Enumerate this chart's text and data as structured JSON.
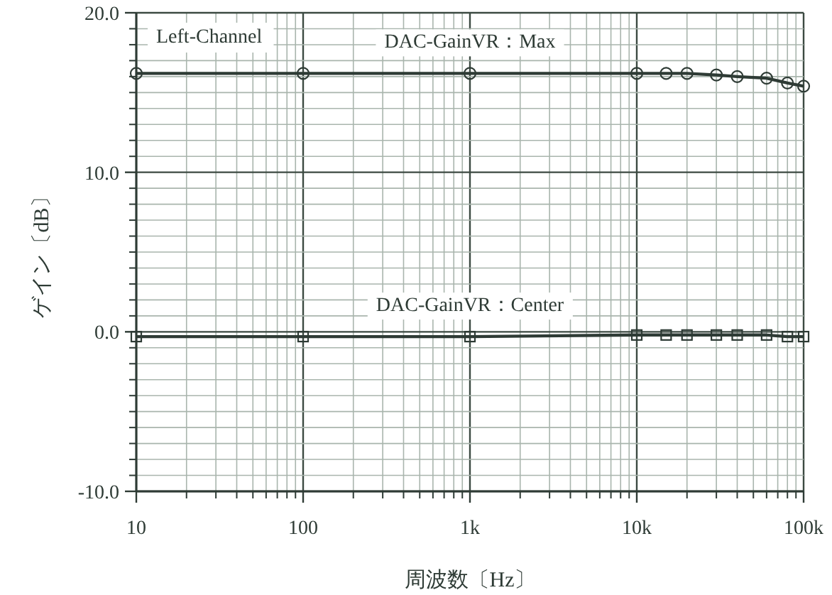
{
  "chart_data": {
    "type": "line",
    "xlabel": "周波数〔Hz〕",
    "ylabel": "ゲイン〔dB〕",
    "annotations": [
      "Left-Channel"
    ],
    "x": [
      10,
      100,
      1000,
      10000,
      15000,
      20000,
      30000,
      40000,
      60000,
      80000,
      100000
    ],
    "series": [
      {
        "name": "DAC-GainVR：Max",
        "color": "#2e3b35",
        "marker": "circle",
        "values": [
          16.2,
          16.2,
          16.2,
          16.2,
          16.2,
          16.2,
          16.1,
          16.0,
          15.9,
          15.6,
          15.4
        ]
      },
      {
        "name": "DAC-GainVR：Center",
        "color": "#2e3b35",
        "marker": "square",
        "values": [
          -0.3,
          -0.3,
          -0.3,
          -0.2,
          -0.2,
          -0.2,
          -0.2,
          -0.2,
          -0.2,
          -0.3,
          -0.3
        ]
      }
    ],
    "log": "x",
    "grid": true,
    "xlim": [
      10,
      100000
    ],
    "xticks": [
      10,
      100,
      {
        "value": 1000,
        "label": "1k"
      },
      {
        "value": 10000,
        "label": "10k"
      },
      {
        "value": 100000,
        "label": "100k"
      }
    ],
    "ylim": [
      -10,
      20
    ],
    "yticks": [
      {
        "value": -10,
        "label": "-10.0"
      },
      {
        "value": 0,
        "label": "0.0"
      },
      {
        "value": 10,
        "label": "10.0"
      },
      {
        "value": 20,
        "label": "20.0"
      }
    ]
  }
}
